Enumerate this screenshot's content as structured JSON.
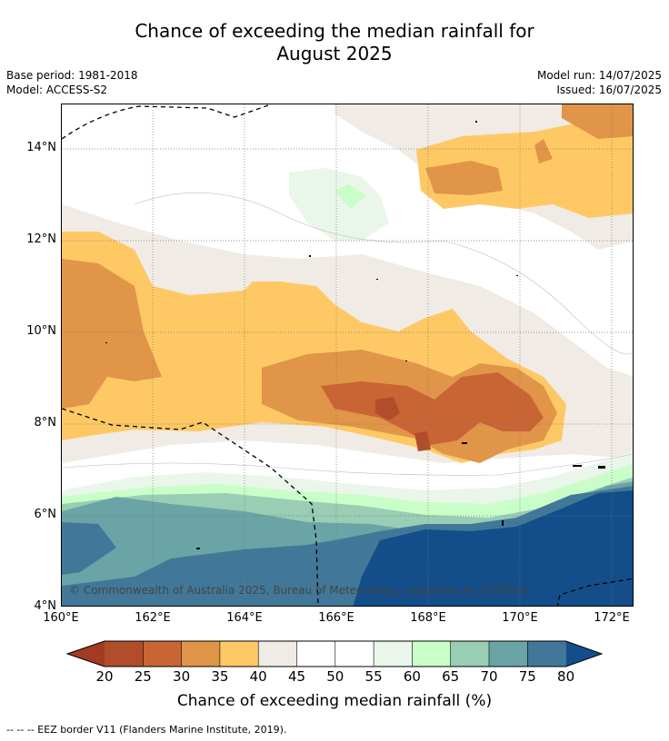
{
  "title_line1": "Chance of exceeding the median rainfall for",
  "title_line2": "August 2025",
  "base_period": "Base period: 1981-2018",
  "model": "Model: ACCESS-S2",
  "model_run": "Model run: 14/07/2025",
  "issued": "Issued: 16/07/2025",
  "copyright": "© Commonwealth of Australia 2025, Bureau of Meteorology, supported by COSPPac",
  "lat_ticks": [
    "14°N",
    "12°N",
    "10°N",
    "8°N",
    "6°N",
    "4°N"
  ],
  "lon_ticks": [
    "160°E",
    "162°E",
    "164°E",
    "166°E",
    "168°E",
    "170°E",
    "172°E"
  ],
  "colorbar": {
    "ticks": [
      "20",
      "25",
      "30",
      "35",
      "40",
      "45",
      "50",
      "55",
      "60",
      "65",
      "70",
      "75",
      "80"
    ],
    "label": "Chance of exceeding median rainfall (%)",
    "colors": {
      "lt20": "#a23b22",
      "20_25": "#b14d2a",
      "25_30": "#c96434",
      "30_35": "#e09548",
      "35_40": "#fec965",
      "40_45": "#f0ebe5",
      "45_50": "#ffffff",
      "50_55": "#ffffff",
      "55_60": "#e9f6e9",
      "60_65": "#c9fec9",
      "65_70": "#99cdb4",
      "70_75": "#6aa4a6",
      "75_80": "#417899",
      "gt80": "#134e8a"
    }
  },
  "legend_note": "-- -- -- EEZ border V11 (Flanders Marine Institute, 2019)."
}
